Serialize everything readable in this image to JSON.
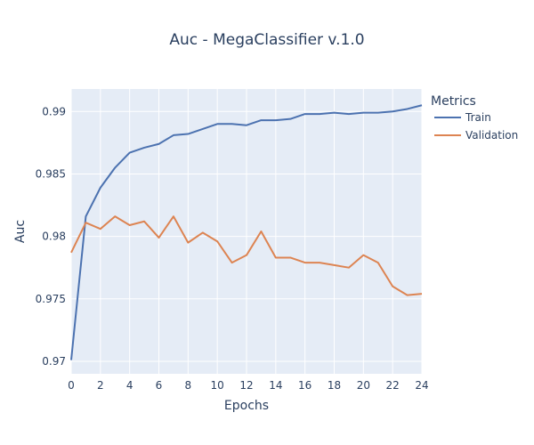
{
  "chart_data": {
    "type": "line",
    "title": "Auc - MegaClassifier v.1.0",
    "xlabel": "Epochs",
    "ylabel": "Auc",
    "xlim": [
      0,
      24
    ],
    "ylim": [
      0.969,
      0.9918
    ],
    "x_ticks": [
      0,
      2,
      4,
      6,
      8,
      10,
      12,
      14,
      16,
      18,
      20,
      22,
      24
    ],
    "y_ticks": [
      0.97,
      0.975,
      0.98,
      0.985,
      0.99
    ],
    "y_tick_labels": [
      "0.97",
      "0.975",
      "0.98",
      "0.985",
      "0.99"
    ],
    "grid": true,
    "legend": {
      "title": "Metrics",
      "placement": "top-right, outside plot"
    },
    "x": [
      0,
      1,
      2,
      3,
      4,
      5,
      6,
      7,
      8,
      9,
      10,
      11,
      12,
      13,
      14,
      15,
      16,
      17,
      18,
      19,
      20,
      21,
      22,
      23,
      24
    ],
    "series": [
      {
        "name": "Train",
        "color": "#4c72b0",
        "values": [
          0.9701,
          0.9816,
          0.9839,
          0.9855,
          0.9867,
          0.9871,
          0.9874,
          0.9881,
          0.9882,
          0.9886,
          0.989,
          0.989,
          0.9889,
          0.9893,
          0.9893,
          0.9894,
          0.9898,
          0.9898,
          0.9899,
          0.9898,
          0.9899,
          0.9899,
          0.99,
          0.9902,
          0.9905
        ]
      },
      {
        "name": "Validation",
        "color": "#dd8452",
        "values": [
          0.9787,
          0.9811,
          0.9806,
          0.9816,
          0.9809,
          0.9812,
          0.9799,
          0.9816,
          0.9795,
          0.9803,
          0.9796,
          0.9779,
          0.9785,
          0.9804,
          0.9783,
          0.9783,
          0.9779,
          0.9779,
          0.9777,
          0.9775,
          0.9785,
          0.9779,
          0.976,
          0.9753,
          0.9754
        ]
      }
    ]
  }
}
